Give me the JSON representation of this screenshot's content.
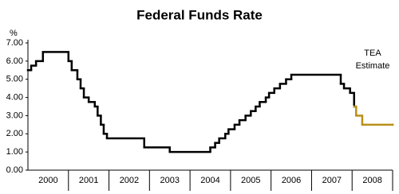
{
  "chart_data": {
    "type": "step",
    "title": "Federal Funds Rate",
    "y_unit_label": "%",
    "annotation": [
      "TEA",
      "Estimate"
    ],
    "xlim": [
      2000,
      2009
    ],
    "year_labels": [
      "2000",
      "2001",
      "2002",
      "2003",
      "2004",
      "2005",
      "2006",
      "2007",
      "2008"
    ],
    "ylim": [
      0,
      7
    ],
    "yticks": [
      {
        "value": 0,
        "label": "0.00"
      },
      {
        "value": 1,
        "label": "1.00"
      },
      {
        "value": 2,
        "label": "2.00"
      },
      {
        "value": 3,
        "label": "3.00"
      },
      {
        "value": 4,
        "label": "4.00"
      },
      {
        "value": 5,
        "label": "5.00"
      },
      {
        "value": 6,
        "label": "6.00"
      },
      {
        "value": 7,
        "label": "7.00"
      }
    ],
    "grid": false,
    "title_color": "#b8901a",
    "series": [
      {
        "color": "#000000",
        "x": [
          2000.0,
          2000.08,
          2000.2,
          2000.37,
          2001.0,
          2001.08,
          2001.22,
          2001.3,
          2001.38,
          2001.5,
          2001.65,
          2001.72,
          2001.8,
          2001.87,
          2001.95,
          2002.87,
          2003.5,
          2004.5,
          2004.62,
          2004.72,
          2004.87,
          2004.95,
          2005.1,
          2005.22,
          2005.37,
          2005.5,
          2005.62,
          2005.72,
          2005.87,
          2005.95,
          2006.08,
          2006.22,
          2006.37,
          2006.5,
          2007.72,
          2007.8,
          2007.95,
          2008.05
        ],
        "values": [
          5.5,
          5.75,
          6.0,
          6.5,
          6.0,
          5.5,
          5.0,
          4.5,
          4.0,
          3.75,
          3.5,
          3.0,
          2.5,
          2.0,
          1.75,
          1.25,
          1.0,
          1.25,
          1.5,
          1.75,
          2.0,
          2.25,
          2.5,
          2.75,
          3.0,
          3.25,
          3.5,
          3.75,
          4.0,
          4.25,
          4.5,
          4.75,
          5.0,
          5.25,
          4.75,
          4.5,
          4.25,
          3.5
        ]
      },
      {
        "color": "#b8901a",
        "x": [
          2008.05,
          2008.1,
          2008.25,
          2009.0
        ],
        "values": [
          3.5,
          3.0,
          2.5,
          2.5
        ]
      }
    ]
  }
}
